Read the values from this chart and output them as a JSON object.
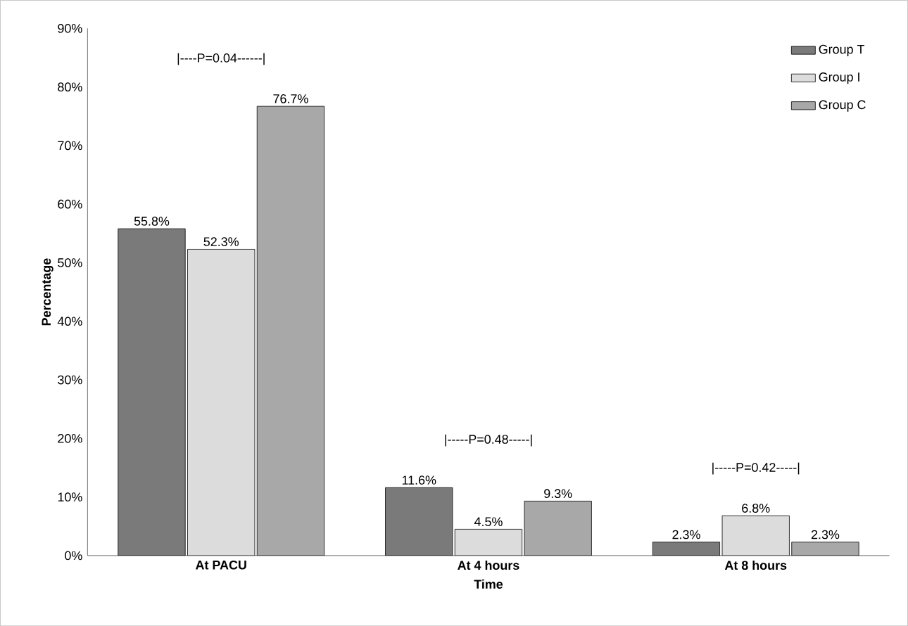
{
  "chart_data": {
    "type": "bar",
    "xlabel": "Time",
    "ylabel": "Percentage",
    "categories": [
      "At PACU",
      "At 4 hours",
      "At 8 hours"
    ],
    "series": [
      {
        "name": "Group T",
        "color": "#7a7a7a",
        "values": [
          55.8,
          11.6,
          2.3
        ],
        "value_labels": [
          "55.8%",
          "11.6%",
          "2.3%"
        ]
      },
      {
        "name": "Group I",
        "color": "#dcdcdc",
        "values": [
          52.3,
          4.5,
          6.8
        ],
        "value_labels": [
          "52.3%",
          "4.5%",
          "6.8%"
        ]
      },
      {
        "name": "Group C",
        "color": "#a8a8a8",
        "values": [
          76.7,
          9.3,
          2.3
        ],
        "value_labels": [
          "76.7%",
          "9.3%",
          "2.3%"
        ]
      }
    ],
    "ylim": [
      0,
      90
    ],
    "yticks": [
      {
        "value": 0,
        "label": "0%"
      },
      {
        "value": 10,
        "label": "10%"
      },
      {
        "value": 20,
        "label": "20%"
      },
      {
        "value": 30,
        "label": "30%"
      },
      {
        "value": 40,
        "label": "40%"
      },
      {
        "value": 50,
        "label": "50%"
      },
      {
        "value": 60,
        "label": "60%"
      },
      {
        "value": 70,
        "label": "70%"
      },
      {
        "value": 80,
        "label": "80%"
      },
      {
        "value": 90,
        "label": "90%"
      }
    ],
    "annotations": [
      "|----P=0.04------|",
      "|-----P=0.48-----|",
      "|-----P=0.42-----|"
    ],
    "legend": "top right"
  }
}
